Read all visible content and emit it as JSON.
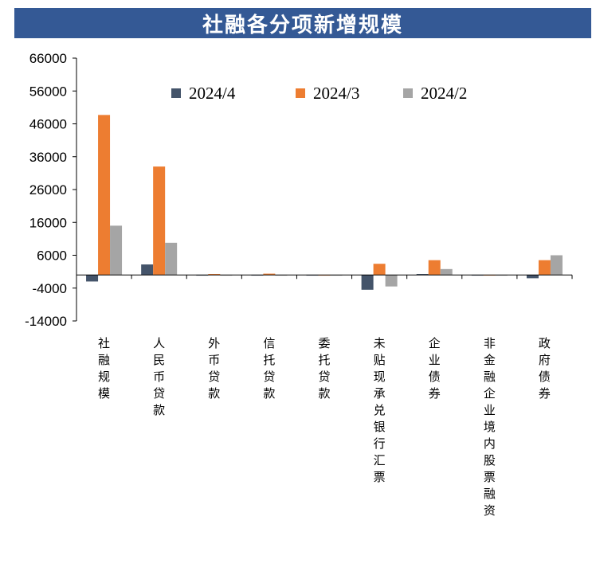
{
  "title": "社融各分项新增规模",
  "chart_data": {
    "type": "bar",
    "categories": [
      "社融规模",
      "人民币贷款",
      "外币贷款",
      "信托贷款",
      "委托贷款",
      "未贴现承兑银行汇票",
      "企业债券",
      "非金融企业境内股票融资",
      "政府债券"
    ],
    "series": [
      {
        "name": "2024/4",
        "color": "#44546A",
        "values": [
          -1987,
          3200,
          -200,
          -100,
          -50,
          -4500,
          300,
          -100,
          -1000
        ]
      },
      {
        "name": "2024/3",
        "color": "#ED7D31",
        "values": [
          48700,
          33000,
          300,
          400,
          -200,
          3400,
          4500,
          -100,
          4500
        ]
      },
      {
        "name": "2024/2",
        "color": "#A5A5A5",
        "values": [
          15000,
          9800,
          -100,
          -100,
          -50,
          -3500,
          1800,
          -100,
          6000
        ]
      }
    ],
    "yticks": [
      "66000",
      "56000",
      "46000",
      "36000",
      "26000",
      "16000",
      "6000",
      "-4000",
      "-14000"
    ],
    "ylim": [
      -14000,
      66000
    ],
    "legend_position": "top"
  }
}
